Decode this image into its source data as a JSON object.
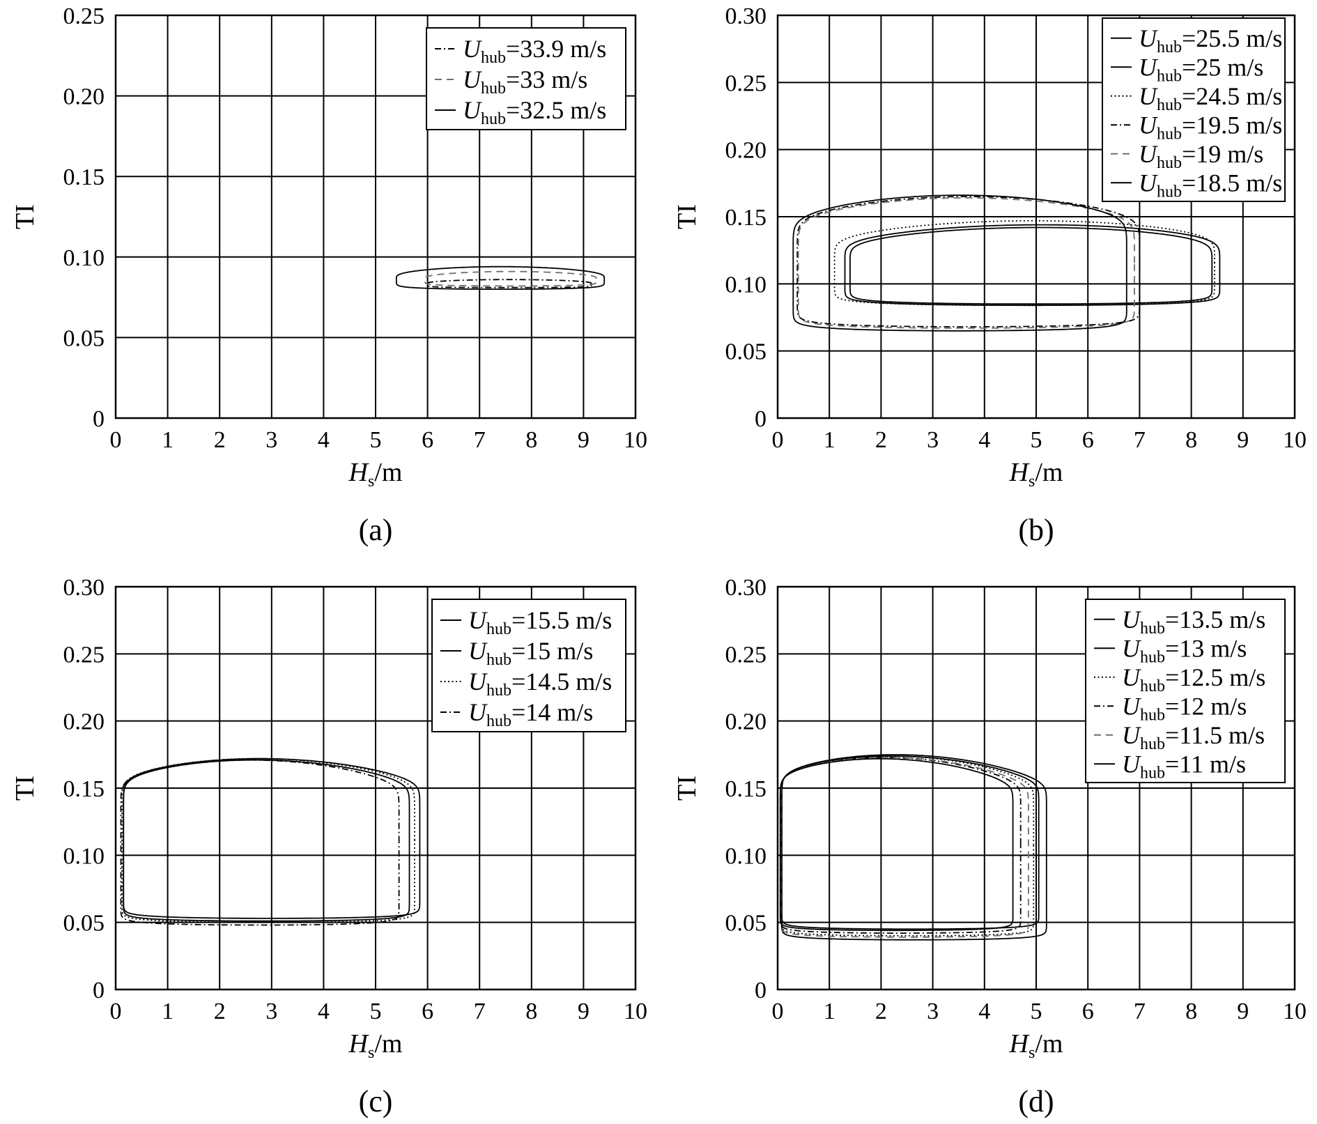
{
  "figure": {
    "background": "#ffffff",
    "ink": "#000000",
    "grey": "#6e6e6e"
  },
  "chart_data": [
    {
      "id": "a",
      "type": "line",
      "panel_label": "(a)",
      "xlabel_main": "H",
      "xlabel_sub": "s",
      "xlabel_unit": "/m",
      "ylabel": "TI",
      "xlim": [
        0,
        10
      ],
      "ylim": [
        0,
        0.25
      ],
      "x_ticks": [
        0,
        1,
        2,
        3,
        4,
        5,
        6,
        7,
        8,
        9,
        10
      ],
      "x_tick_labels": [
        "0",
        "1",
        "2",
        "3",
        "4",
        "5",
        "6",
        "7",
        "8",
        "9",
        "10"
      ],
      "y_ticks": [
        0,
        0.05,
        0.1,
        0.15,
        0.2,
        0.25
      ],
      "y_tick_labels": [
        "0",
        "0.05",
        "0.10",
        "0.15",
        "0.20",
        "0.25"
      ],
      "grid": true,
      "legend_position": "top-right",
      "legend_width": 286,
      "legend_sub": "hub",
      "series": [
        {
          "name": "U",
          "legend_value": "=33.9 m/s",
          "style": "dashdot",
          "color": "#000000",
          "loop": {
            "xmin": 6.0,
            "xmax": 9.15,
            "ytop": 0.086,
            "ybot": 0.081,
            "skew": 0.5,
            "sharp": 0.7
          }
        },
        {
          "name": "U",
          "legend_value": "=33 m/s",
          "style": "dashed",
          "color": "#6e6e6e",
          "loop": {
            "xmin": 5.95,
            "xmax": 9.25,
            "ytop": 0.091,
            "ybot": 0.082,
            "skew": 0.5,
            "sharp": 0.7
          }
        },
        {
          "name": "U",
          "legend_value": "=32.5 m/s",
          "style": "solid",
          "color": "#000000",
          "loop": {
            "xmin": 5.4,
            "xmax": 9.4,
            "ytop": 0.094,
            "ybot": 0.08,
            "skew": 0.5,
            "sharp": 0.7
          }
        }
      ]
    },
    {
      "id": "b",
      "type": "line",
      "panel_label": "(b)",
      "xlabel_main": "H",
      "xlabel_sub": "s",
      "xlabel_unit": "/m",
      "ylabel": "TI",
      "xlim": [
        0,
        10
      ],
      "ylim": [
        0,
        0.3
      ],
      "x_ticks": [
        0,
        1,
        2,
        3,
        4,
        5,
        6,
        7,
        8,
        9,
        10
      ],
      "x_tick_labels": [
        "0",
        "1",
        "2",
        "3",
        "4",
        "5",
        "6",
        "7",
        "8",
        "9",
        "10"
      ],
      "y_ticks": [
        0,
        0.05,
        0.1,
        0.15,
        0.2,
        0.25,
        0.3
      ],
      "y_tick_labels": [
        "0",
        "0.05",
        "0.10",
        "0.15",
        "0.20",
        "0.25",
        "0.30"
      ],
      "grid": true,
      "legend_position": "top-right",
      "legend_width": 262,
      "legend_sub": "hub",
      "series": [
        {
          "name": "U",
          "legend_value": "=25.5 m/s",
          "style": "solid",
          "color": "#000000",
          "loop": {
            "xmin": 1.3,
            "xmax": 8.55,
            "ytop": 0.144,
            "ybot": 0.084,
            "skew": 0.55,
            "sharp": 0.35
          }
        },
        {
          "name": "U",
          "legend_value": "=25 m/s",
          "style": "solid",
          "color": "#000000",
          "loop": {
            "xmin": 1.4,
            "xmax": 8.4,
            "ytop": 0.142,
            "ybot": 0.085,
            "skew": 0.55,
            "sharp": 0.35
          }
        },
        {
          "name": "U",
          "legend_value": "=24.5 m/s",
          "style": "dotted",
          "color": "#000000",
          "loop": {
            "xmin": 1.1,
            "xmax": 8.45,
            "ytop": 0.147,
            "ybot": 0.084,
            "skew": 0.55,
            "sharp": 0.35
          }
        },
        {
          "name": "U",
          "legend_value": "=19.5 m/s",
          "style": "dashdot",
          "color": "#000000",
          "loop": {
            "xmin": 0.38,
            "xmax": 7.0,
            "ytop": 0.165,
            "ybot": 0.068,
            "skew": 0.5,
            "sharp": 0.25
          }
        },
        {
          "name": "U",
          "legend_value": "=19 m/s",
          "style": "dashed",
          "color": "#6e6e6e",
          "loop": {
            "xmin": 0.4,
            "xmax": 6.9,
            "ytop": 0.164,
            "ybot": 0.067,
            "skew": 0.5,
            "sharp": 0.25
          }
        },
        {
          "name": "U",
          "legend_value": "=18.5 m/s",
          "style": "solid",
          "color": "#000000",
          "loop": {
            "xmin": 0.3,
            "xmax": 6.75,
            "ytop": 0.166,
            "ybot": 0.065,
            "skew": 0.5,
            "sharp": 0.25
          }
        }
      ]
    },
    {
      "id": "c",
      "type": "line",
      "panel_label": "(c)",
      "xlabel_main": "H",
      "xlabel_sub": "s",
      "xlabel_unit": "/m",
      "ylabel": "TI",
      "xlim": [
        0,
        10
      ],
      "ylim": [
        0,
        0.3
      ],
      "x_ticks": [
        0,
        1,
        2,
        3,
        4,
        5,
        6,
        7,
        8,
        9,
        10
      ],
      "x_tick_labels": [
        "0",
        "1",
        "2",
        "3",
        "4",
        "5",
        "6",
        "7",
        "8",
        "9",
        "10"
      ],
      "y_ticks": [
        0,
        0.05,
        0.1,
        0.15,
        0.2,
        0.25,
        0.3
      ],
      "y_tick_labels": [
        "0",
        "0.05",
        "0.10",
        "0.15",
        "0.20",
        "0.25",
        "0.30"
      ],
      "grid": true,
      "legend_position": "top-right",
      "legend_width": 278,
      "legend_sub": "hub",
      "series": [
        {
          "name": "U",
          "legend_value": "=15.5 m/s",
          "style": "solid",
          "color": "#000000",
          "loop": {
            "xmin": 0.15,
            "xmax": 5.85,
            "ytop": 0.172,
            "ybot": 0.053,
            "skew": 0.44,
            "sharp": 0.15
          }
        },
        {
          "name": "U",
          "legend_value": "=15 m/s",
          "style": "solid",
          "color": "#000000",
          "loop": {
            "xmin": 0.15,
            "xmax": 5.65,
            "ytop": 0.171,
            "ybot": 0.051,
            "skew": 0.44,
            "sharp": 0.15
          }
        },
        {
          "name": "U",
          "legend_value": "=14.5 m/s",
          "style": "dotted",
          "color": "#000000",
          "loop": {
            "xmin": 0.12,
            "xmax": 5.75,
            "ytop": 0.172,
            "ybot": 0.05,
            "skew": 0.44,
            "sharp": 0.15
          }
        },
        {
          "name": "U",
          "legend_value": "=14 m/s",
          "style": "dashdot",
          "color": "#000000",
          "loop": {
            "xmin": 0.1,
            "xmax": 5.45,
            "ytop": 0.171,
            "ybot": 0.048,
            "skew": 0.44,
            "sharp": 0.15
          }
        }
      ]
    },
    {
      "id": "d",
      "type": "line",
      "panel_label": "(d)",
      "xlabel_main": "H",
      "xlabel_sub": "s",
      "xlabel_unit": "/m",
      "ylabel": "TI",
      "xlim": [
        0,
        10
      ],
      "ylim": [
        0,
        0.3
      ],
      "x_ticks": [
        0,
        1,
        2,
        3,
        4,
        5,
        6,
        7,
        8,
        9,
        10
      ],
      "x_tick_labels": [
        "0",
        "1",
        "2",
        "3",
        "4",
        "5",
        "6",
        "7",
        "8",
        "9",
        "10"
      ],
      "y_ticks": [
        0,
        0.05,
        0.1,
        0.15,
        0.2,
        0.25,
        0.3
      ],
      "y_tick_labels": [
        "0",
        "0.05",
        "0.10",
        "0.15",
        "0.20",
        "0.25",
        "0.30"
      ],
      "grid": true,
      "legend_position": "top-right",
      "legend_width": 286,
      "legend_sub": "hub",
      "series": [
        {
          "name": "U",
          "legend_value": "=13.5 m/s",
          "style": "solid",
          "color": "#000000",
          "loop": {
            "xmin": 0.08,
            "xmax": 5.2,
            "ytop": 0.175,
            "ybot": 0.037,
            "skew": 0.4,
            "sharp": 0.12
          }
        },
        {
          "name": "U",
          "legend_value": "=13 m/s",
          "style": "solid",
          "color": "#000000",
          "loop": {
            "xmin": 0.08,
            "xmax": 5.05,
            "ytop": 0.174,
            "ybot": 0.045,
            "skew": 0.4,
            "sharp": 0.12
          }
        },
        {
          "name": "U",
          "legend_value": "=12.5 m/s",
          "style": "dotted",
          "color": "#000000",
          "loop": {
            "xmin": 0.07,
            "xmax": 4.95,
            "ytop": 0.174,
            "ybot": 0.04,
            "skew": 0.4,
            "sharp": 0.12
          }
        },
        {
          "name": "U",
          "legend_value": "=12 m/s",
          "style": "dashdot",
          "color": "#000000",
          "loop": {
            "xmin": 0.06,
            "xmax": 4.7,
            "ytop": 0.173,
            "ybot": 0.042,
            "skew": 0.4,
            "sharp": 0.12
          }
        },
        {
          "name": "U",
          "legend_value": "=11.5 m/s",
          "style": "dashed",
          "color": "#6e6e6e",
          "loop": {
            "xmin": 0.06,
            "xmax": 4.85,
            "ytop": 0.173,
            "ybot": 0.039,
            "skew": 0.4,
            "sharp": 0.12
          }
        },
        {
          "name": "U",
          "legend_value": "=11 m/s",
          "style": "solid",
          "color": "#000000",
          "loop": {
            "xmin": 0.05,
            "xmax": 4.55,
            "ytop": 0.172,
            "ybot": 0.044,
            "skew": 0.4,
            "sharp": 0.12
          }
        }
      ]
    }
  ]
}
